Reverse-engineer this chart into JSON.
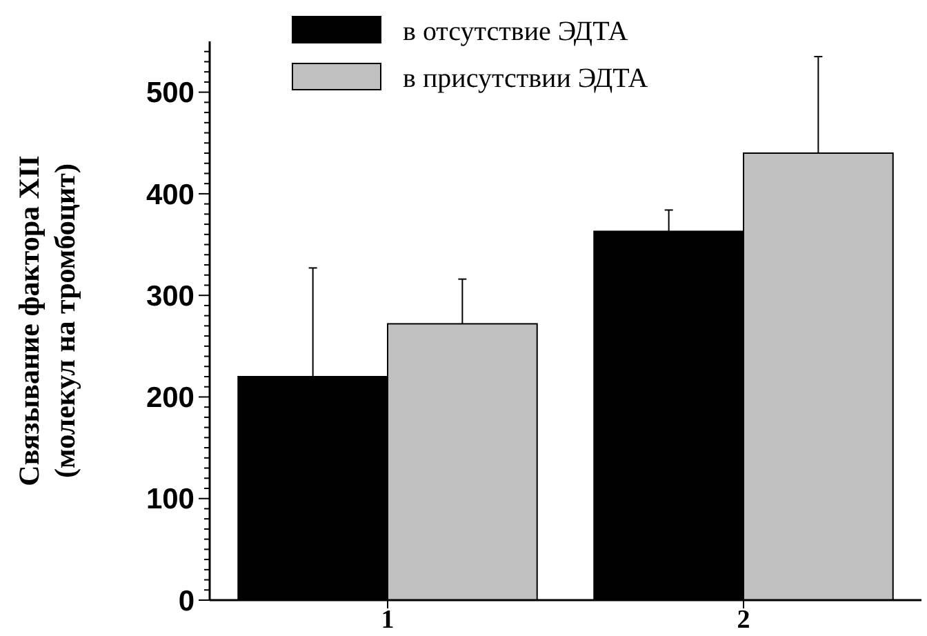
{
  "chart_data": {
    "type": "bar",
    "ylabel": "Связывание фактора XII\n(молекул на тромбоцит)",
    "categories": [
      "1",
      "2"
    ],
    "series": [
      {
        "name": "в отсутствие ЭДТА",
        "color": "#000000",
        "values": [
          220,
          363
        ],
        "errors": [
          [
            220,
            327
          ],
          [
            363,
            384
          ]
        ]
      },
      {
        "name": "в присутствии ЭДТА",
        "color": "#c0c0c0",
        "values": [
          272,
          440
        ],
        "errors": [
          [
            272,
            316
          ],
          [
            440,
            535
          ]
        ]
      }
    ],
    "ylim": [
      0,
      550
    ],
    "yticks": [
      0,
      {
        "value": 10,
        "label": null
      },
      {
        "value": 20,
        "label": null
      },
      {
        "value": 30,
        "label": null
      },
      {
        "value": 40,
        "label": null
      },
      {
        "value": 50,
        "label": null
      },
      {
        "value": 60,
        "label": null
      },
      {
        "value": 70,
        "label": null
      },
      {
        "value": 80,
        "label": null
      },
      {
        "value": 90,
        "label": null
      },
      100,
      {
        "value": 110,
        "label": null
      },
      {
        "value": 120,
        "label": null
      },
      {
        "value": 130,
        "label": null
      },
      {
        "value": 140,
        "label": null
      },
      {
        "value": 150,
        "label": null
      },
      {
        "value": 160,
        "label": null
      },
      {
        "value": 170,
        "label": null
      },
      {
        "value": 180,
        "label": null
      },
      {
        "value": 190,
        "label": null
      },
      200,
      {
        "value": 210,
        "label": null
      },
      {
        "value": 220,
        "label": null
      },
      {
        "value": 230,
        "label": null
      },
      {
        "value": 240,
        "label": null
      },
      {
        "value": 250,
        "label": null
      },
      {
        "value": 260,
        "label": null
      },
      {
        "value": 270,
        "label": null
      },
      {
        "value": 280,
        "label": null
      },
      {
        "value": 290,
        "label": null
      },
      300,
      {
        "value": 310,
        "label": null
      },
      {
        "value": 320,
        "label": null
      },
      {
        "value": 330,
        "label": null
      },
      {
        "value": 340,
        "label": null
      },
      {
        "value": 350,
        "label": null
      },
      {
        "value": 360,
        "label": null
      },
      {
        "value": 370,
        "label": null
      },
      {
        "value": 380,
        "label": null
      },
      {
        "value": 390,
        "label": null
      },
      400,
      {
        "value": 410,
        "label": null
      },
      {
        "value": 420,
        "label": null
      },
      {
        "value": 430,
        "label": null
      },
      {
        "value": 440,
        "label": null
      },
      {
        "value": 450,
        "label": null
      },
      {
        "value": 460,
        "label": null
      },
      {
        "value": 470,
        "label": null
      },
      {
        "value": 480,
        "label": null
      },
      {
        "value": 490,
        "label": null
      },
      500,
      {
        "value": 510,
        "label": null
      },
      {
        "value": 520,
        "label": null
      },
      {
        "value": 530,
        "label": null
      },
      {
        "value": 540,
        "label": null
      }
    ],
    "grid": false,
    "legend": "top left"
  }
}
